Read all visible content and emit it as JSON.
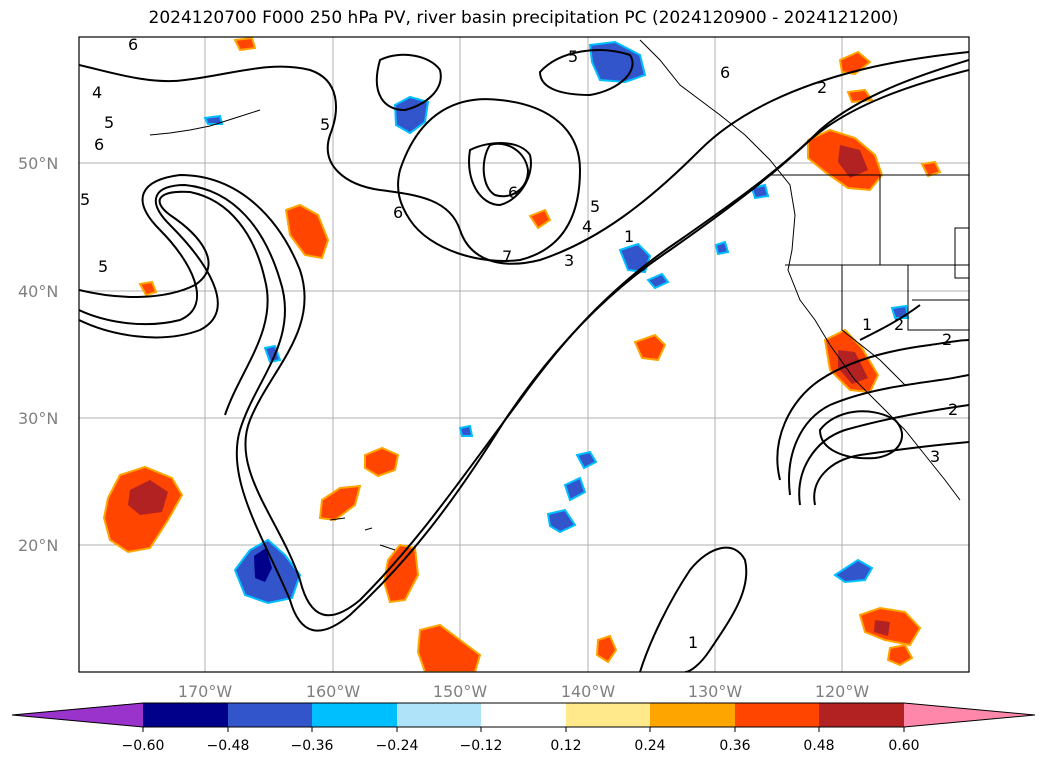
{
  "title": "2024120700 F000 250 hPa PV, river basin precipitation PC (2024120900 - 2024121200)",
  "map": {
    "lat_labels": [
      "50°N",
      "40°N",
      "30°N",
      "20°N"
    ],
    "lon_labels": [
      "170°W",
      "160°W",
      "150°W",
      "140°W",
      "130°W",
      "120°W"
    ],
    "contour_labels": [
      "6",
      "5",
      "5",
      "6",
      "2",
      "4",
      "5",
      "6",
      "5",
      "6",
      "6",
      "7",
      "5",
      "4",
      "3",
      "1",
      "5",
      "1",
      "2",
      "2",
      "2",
      "3",
      "1"
    ],
    "grid": true
  },
  "colorbar": {
    "ticks": [
      "−0.60",
      "−0.48",
      "−0.36",
      "−0.24",
      "−0.12",
      "0.12",
      "0.24",
      "0.36",
      "0.48",
      "0.60"
    ],
    "colors": [
      "#9933cc",
      "#00008b",
      "#3355cc",
      "#00bfff",
      "#aee3fa",
      "#ffffff",
      "#ffe98a",
      "#ffa500",
      "#ff4500",
      "#b22222",
      "#ff88aa"
    ]
  }
}
